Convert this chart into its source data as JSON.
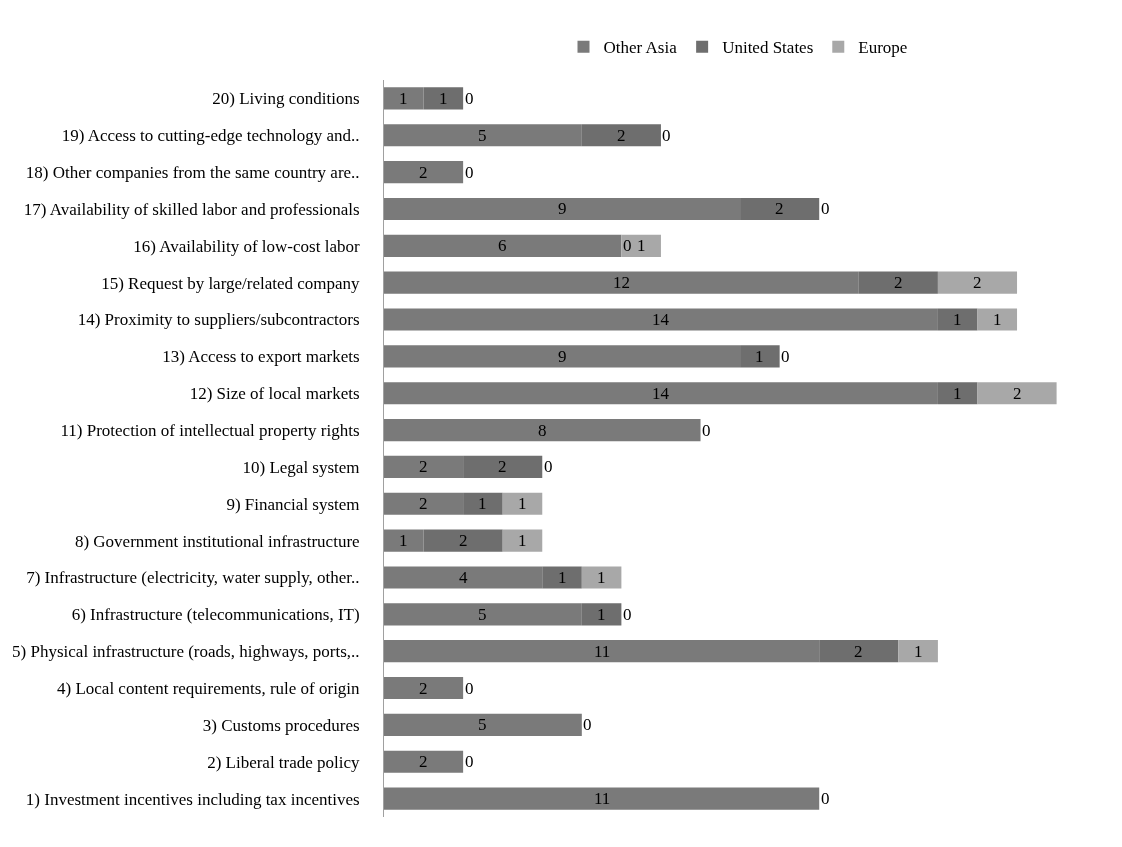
{
  "chart_data": {
    "type": "bar",
    "orientation": "horizontal",
    "stacked": true,
    "legend": "top",
    "categories": [
      "20) Living conditions",
      "19) Access to cutting-edge technology and..",
      "18) Other companies from the same country are..",
      "17) Availability of skilled labor and professionals",
      "16) Availability of low-cost labor",
      "15) Request by large/related company",
      "14) Proximity to suppliers/subcontractors",
      "13) Access to export markets",
      "12) Size of local markets",
      "11) Protection of intellectual property rights",
      "10) Legal system",
      "9) Financial system",
      "8) Government institutional infrastructure",
      "7) Infrastructure (electricity, water supply, other..",
      "6) Infrastructure (telecommunications, IT)",
      "5) Physical infrastructure (roads, highways, ports,..",
      "4) Local content requirements, rule of origin",
      "3) Customs procedures",
      "2) Liberal trade policy",
      "1) Investment incentives including tax incentives"
    ],
    "series": [
      {
        "name": "Other Asia",
        "color": "#7a7a7a",
        "values": [
          1,
          5,
          2,
          9,
          6,
          12,
          14,
          9,
          14,
          8,
          2,
          2,
          1,
          4,
          5,
          11,
          2,
          5,
          2,
          11
        ],
        "value_labels": [
          "1",
          "5",
          "2",
          "9",
          "6",
          "12",
          "14",
          "9",
          "14",
          "8",
          "2",
          "2",
          "1",
          "4",
          "5",
          "11",
          "2",
          "5",
          "2",
          "11"
        ]
      },
      {
        "name": "United States",
        "color": "#6e6e6e",
        "values": [
          1,
          2,
          0,
          2,
          0,
          2,
          1,
          1,
          1,
          0,
          2,
          1,
          2,
          1,
          1,
          2,
          0,
          0,
          0,
          0
        ],
        "value_labels": [
          "1",
          "2",
          "0",
          "2",
          "0",
          "2",
          "1",
          "1",
          "1",
          "0",
          "2",
          "1",
          "2",
          "1",
          "1",
          "2",
          "0",
          "0",
          "0",
          "0"
        ]
      },
      {
        "name": "Europe",
        "color": "#a8a8a8",
        "values": [
          0,
          0,
          0,
          0,
          1,
          2,
          1,
          0,
          2,
          0,
          0,
          1,
          1,
          1,
          0,
          1,
          0,
          0,
          0,
          0
        ],
        "value_labels": [
          "0",
          "0",
          null,
          "0",
          "1",
          "2",
          "1",
          "0",
          "2",
          null,
          "0",
          "1",
          "1",
          "1",
          "0",
          "1",
          null,
          null,
          null,
          null
        ]
      }
    ]
  }
}
